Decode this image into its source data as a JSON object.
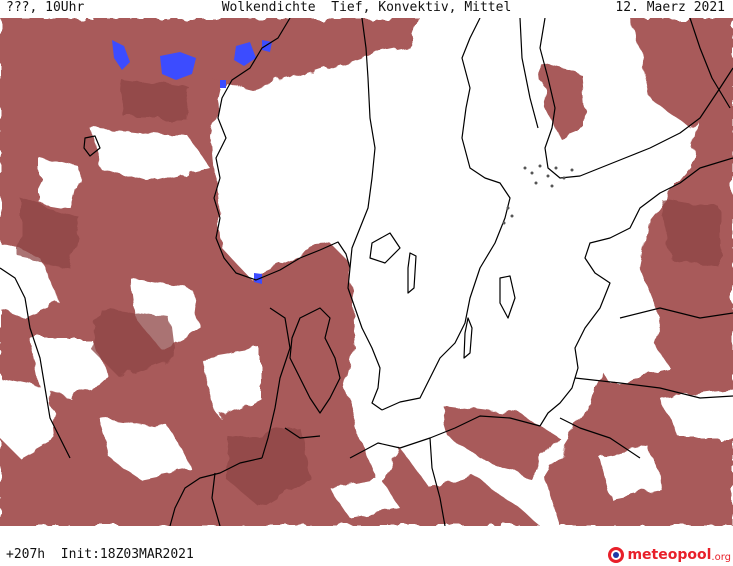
{
  "header": {
    "left": "???, 10Uhr",
    "title": "Wolkendichte  Tief, Konvektiv, Mittel",
    "date": "12. Maerz 2021"
  },
  "footer": {
    "run_info": "+207h  Init:18Z03MAR2021"
  },
  "logo": {
    "name": "meteopool",
    "tld": ".org",
    "icon": "meteopool-logo-icon"
  },
  "map": {
    "cloud_color": "#a85a5a",
    "cloud_dark_color": "#8e4545",
    "precip_color": "#3c4cff",
    "coastline_color": "#000000",
    "clear_sky_color": "#ffffff"
  }
}
